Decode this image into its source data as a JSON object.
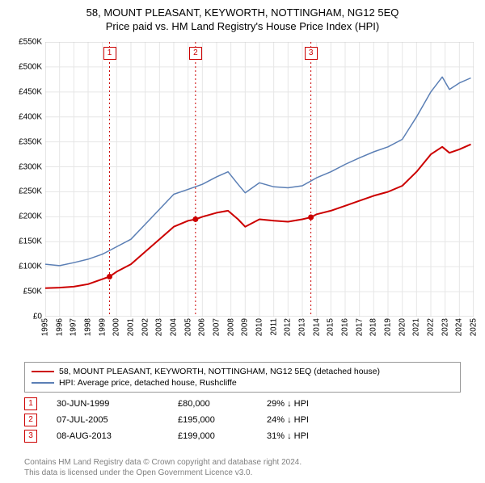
{
  "title": {
    "main": "58, MOUNT PLEASANT, KEYWORTH, NOTTINGHAM, NG12 5EQ",
    "sub": "Price paid vs. HM Land Registry's House Price Index (HPI)"
  },
  "chart": {
    "type": "line",
    "background_color": "#ffffff",
    "grid_color": "#e6e6e6",
    "axis_color": "#cccccc",
    "label_fontsize": 10,
    "x": {
      "min": 1995,
      "max": 2025,
      "ticks": [
        1995,
        1996,
        1997,
        1998,
        1999,
        2000,
        2001,
        2002,
        2003,
        2004,
        2005,
        2006,
        2007,
        2008,
        2009,
        2010,
        2011,
        2012,
        2013,
        2014,
        2015,
        2016,
        2017,
        2018,
        2019,
        2020,
        2021,
        2022,
        2023,
        2024,
        2025
      ]
    },
    "y": {
      "min": 0,
      "max": 550000,
      "tick_step": 50000,
      "tick_labels": [
        "£0",
        "£50K",
        "£100K",
        "£150K",
        "£200K",
        "£250K",
        "£300K",
        "£350K",
        "£400K",
        "£450K",
        "£500K",
        "£550K"
      ]
    },
    "vertical_markers": {
      "color": "#cc0000",
      "dash": "2,3",
      "items": [
        {
          "label": "1",
          "x": 1999.5
        },
        {
          "label": "2",
          "x": 2005.52
        },
        {
          "label": "3",
          "x": 2013.6
        }
      ]
    },
    "series": [
      {
        "name": "58, MOUNT PLEASANT, KEYWORTH, NOTTINGHAM, NG12 5EQ (detached house)",
        "color": "#cc0000",
        "line_width": 2,
        "points": [
          [
            1995,
            57000
          ],
          [
            1996,
            58000
          ],
          [
            1997,
            60000
          ],
          [
            1998,
            65000
          ],
          [
            1999,
            75000
          ],
          [
            1999.5,
            80000
          ],
          [
            2000,
            90000
          ],
          [
            2001,
            105000
          ],
          [
            2002,
            130000
          ],
          [
            2003,
            155000
          ],
          [
            2004,
            180000
          ],
          [
            2005,
            192000
          ],
          [
            2005.52,
            195000
          ],
          [
            2006,
            200000
          ],
          [
            2007,
            208000
          ],
          [
            2007.8,
            212000
          ],
          [
            2008.5,
            195000
          ],
          [
            2009,
            180000
          ],
          [
            2010,
            195000
          ],
          [
            2011,
            192000
          ],
          [
            2012,
            190000
          ],
          [
            2013,
            195000
          ],
          [
            2013.6,
            199000
          ],
          [
            2014,
            205000
          ],
          [
            2015,
            212000
          ],
          [
            2016,
            222000
          ],
          [
            2017,
            232000
          ],
          [
            2018,
            242000
          ],
          [
            2019,
            250000
          ],
          [
            2020,
            262000
          ],
          [
            2021,
            290000
          ],
          [
            2022,
            325000
          ],
          [
            2022.8,
            340000
          ],
          [
            2023.3,
            328000
          ],
          [
            2024,
            335000
          ],
          [
            2024.8,
            345000
          ]
        ],
        "sale_dots": [
          {
            "x": 1999.5,
            "y": 80000
          },
          {
            "x": 2005.52,
            "y": 195000
          },
          {
            "x": 2013.6,
            "y": 199000
          }
        ]
      },
      {
        "name": "HPI: Average price, detached house, Rushcliffe",
        "color": "#5b7fb5",
        "line_width": 1.5,
        "points": [
          [
            1995,
            105000
          ],
          [
            1996,
            102000
          ],
          [
            1997,
            108000
          ],
          [
            1998,
            115000
          ],
          [
            1999,
            125000
          ],
          [
            2000,
            140000
          ],
          [
            2001,
            155000
          ],
          [
            2002,
            185000
          ],
          [
            2003,
            215000
          ],
          [
            2004,
            245000
          ],
          [
            2005,
            255000
          ],
          [
            2006,
            265000
          ],
          [
            2007,
            280000
          ],
          [
            2007.8,
            290000
          ],
          [
            2008.5,
            265000
          ],
          [
            2009,
            248000
          ],
          [
            2010,
            268000
          ],
          [
            2011,
            260000
          ],
          [
            2012,
            258000
          ],
          [
            2013,
            262000
          ],
          [
            2014,
            278000
          ],
          [
            2015,
            290000
          ],
          [
            2016,
            305000
          ],
          [
            2017,
            318000
          ],
          [
            2018,
            330000
          ],
          [
            2019,
            340000
          ],
          [
            2020,
            355000
          ],
          [
            2021,
            400000
          ],
          [
            2022,
            450000
          ],
          [
            2022.8,
            480000
          ],
          [
            2023.3,
            455000
          ],
          [
            2024,
            468000
          ],
          [
            2024.8,
            478000
          ]
        ]
      }
    ]
  },
  "legend": {
    "rows": [
      {
        "color": "#cc0000",
        "label": "58, MOUNT PLEASANT, KEYWORTH, NOTTINGHAM, NG12 5EQ (detached house)"
      },
      {
        "color": "#5b7fb5",
        "label": "HPI: Average price, detached house, Rushcliffe"
      }
    ]
  },
  "sales": [
    {
      "n": "1",
      "date": "30-JUN-1999",
      "price": "£80,000",
      "diff": "29% ↓ HPI"
    },
    {
      "n": "2",
      "date": "07-JUL-2005",
      "price": "£195,000",
      "diff": "24% ↓ HPI"
    },
    {
      "n": "3",
      "date": "08-AUG-2013",
      "price": "£199,000",
      "diff": "31% ↓ HPI"
    }
  ],
  "attribution": {
    "line1": "Contains HM Land Registry data © Crown copyright and database right 2024.",
    "line2": "This data is licensed under the Open Government Licence v3.0."
  }
}
